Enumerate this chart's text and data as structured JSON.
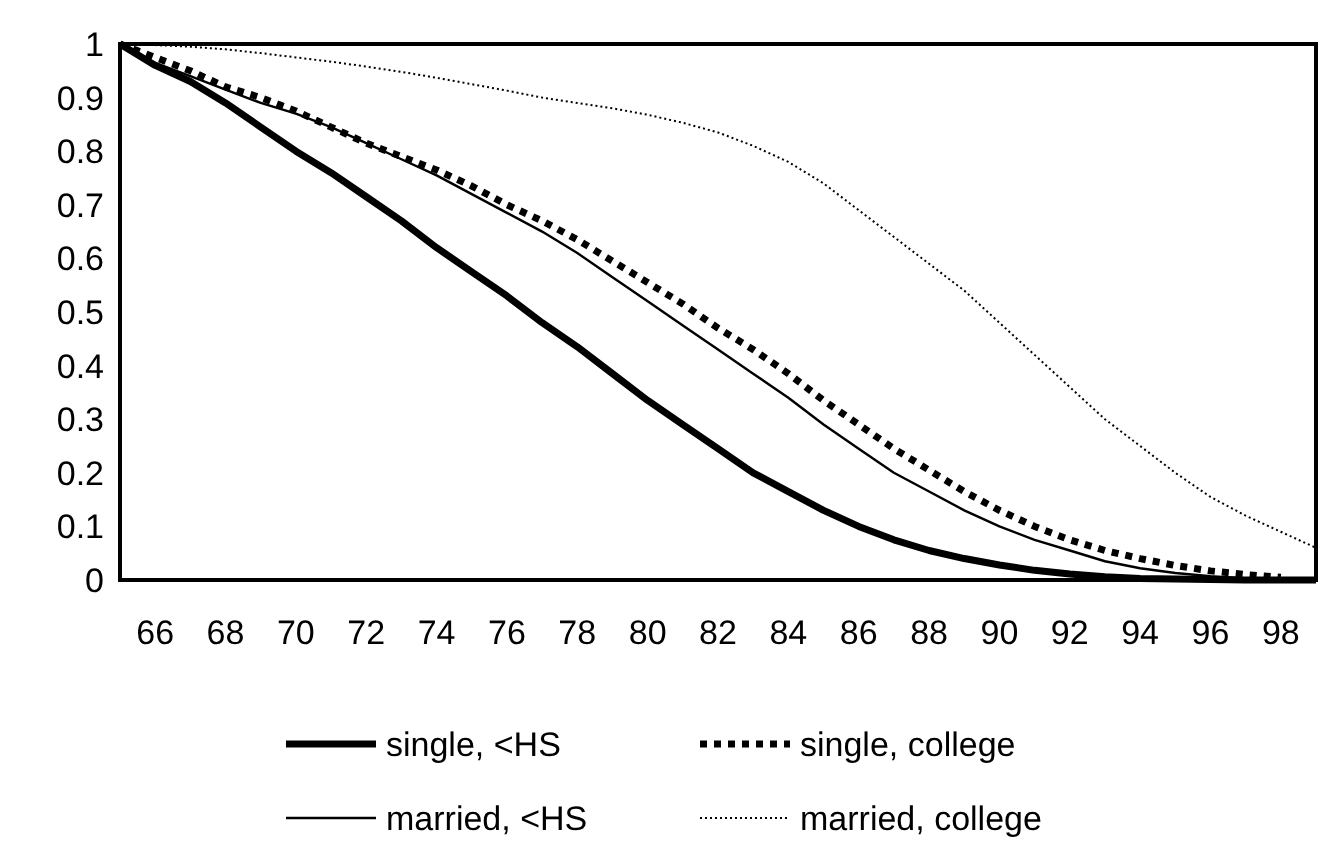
{
  "chart_data": {
    "type": "line",
    "x": [
      65,
      66,
      67,
      68,
      69,
      70,
      71,
      72,
      73,
      74,
      75,
      76,
      77,
      78,
      79,
      80,
      81,
      82,
      83,
      84,
      85,
      86,
      87,
      88,
      89,
      90,
      91,
      92,
      93,
      94,
      95,
      96,
      97,
      98,
      99
    ],
    "xlim": [
      65,
      99
    ],
    "xticks": [
      66,
      68,
      70,
      72,
      74,
      76,
      78,
      80,
      82,
      84,
      86,
      88,
      90,
      92,
      94,
      96,
      98
    ],
    "ylim": [
      0,
      1
    ],
    "yticks": [
      0,
      0.1,
      0.2,
      0.3,
      0.4,
      0.5,
      0.6,
      0.7,
      0.8,
      0.9,
      1
    ],
    "grid": false,
    "legend": "bottom",
    "series": [
      {
        "name": "single, <HS",
        "color": "#000000",
        "line_style": "solid",
        "values": [
          1,
          0.96,
          0.93,
          0.89,
          0.845,
          0.8,
          0.76,
          0.715,
          0.67,
          0.62,
          0.575,
          0.53,
          0.48,
          0.435,
          0.385,
          0.335,
          0.29,
          0.245,
          0.2,
          0.165,
          0.13,
          0.1,
          0.075,
          0.055,
          0.04,
          0.028,
          0.018,
          0.011,
          0.006,
          0.003,
          0.002,
          0.001,
          0,
          0,
          0
        ]
      },
      {
        "name": "single, college",
        "color": "#000000",
        "line_style": "dashed",
        "values": [
          1,
          0.975,
          0.95,
          0.92,
          0.9,
          0.875,
          0.845,
          0.815,
          0.79,
          0.765,
          0.735,
          0.7,
          0.67,
          0.635,
          0.595,
          0.555,
          0.515,
          0.47,
          0.43,
          0.385,
          0.335,
          0.29,
          0.245,
          0.205,
          0.165,
          0.13,
          0.1,
          0.075,
          0.055,
          0.04,
          0.027,
          0.017,
          0.01,
          0.005,
          null
        ]
      },
      {
        "name": "married, <HS",
        "color": "#000000",
        "line_style": "solid",
        "values": [
          1,
          0.965,
          0.94,
          0.915,
          0.89,
          0.87,
          0.845,
          0.815,
          0.785,
          0.755,
          0.72,
          0.685,
          0.65,
          0.61,
          0.565,
          0.52,
          0.475,
          0.43,
          0.385,
          0.34,
          0.29,
          0.245,
          0.2,
          0.165,
          0.13,
          0.1,
          0.075,
          0.055,
          0.035,
          0.022,
          0.013,
          0.007,
          0.003,
          0.001,
          null
        ]
      },
      {
        "name": "married, college",
        "color": "#000000",
        "line_style": "dotted",
        "values": [
          1,
          0.998,
          0.995,
          0.99,
          0.983,
          0.975,
          0.967,
          0.958,
          0.948,
          0.937,
          0.925,
          0.913,
          0.9,
          0.89,
          0.88,
          0.868,
          0.853,
          0.835,
          0.81,
          0.78,
          0.74,
          0.69,
          0.64,
          0.59,
          0.54,
          0.48,
          0.42,
          0.36,
          0.3,
          0.25,
          0.2,
          0.155,
          0.12,
          0.09,
          0.06
        ]
      }
    ]
  }
}
